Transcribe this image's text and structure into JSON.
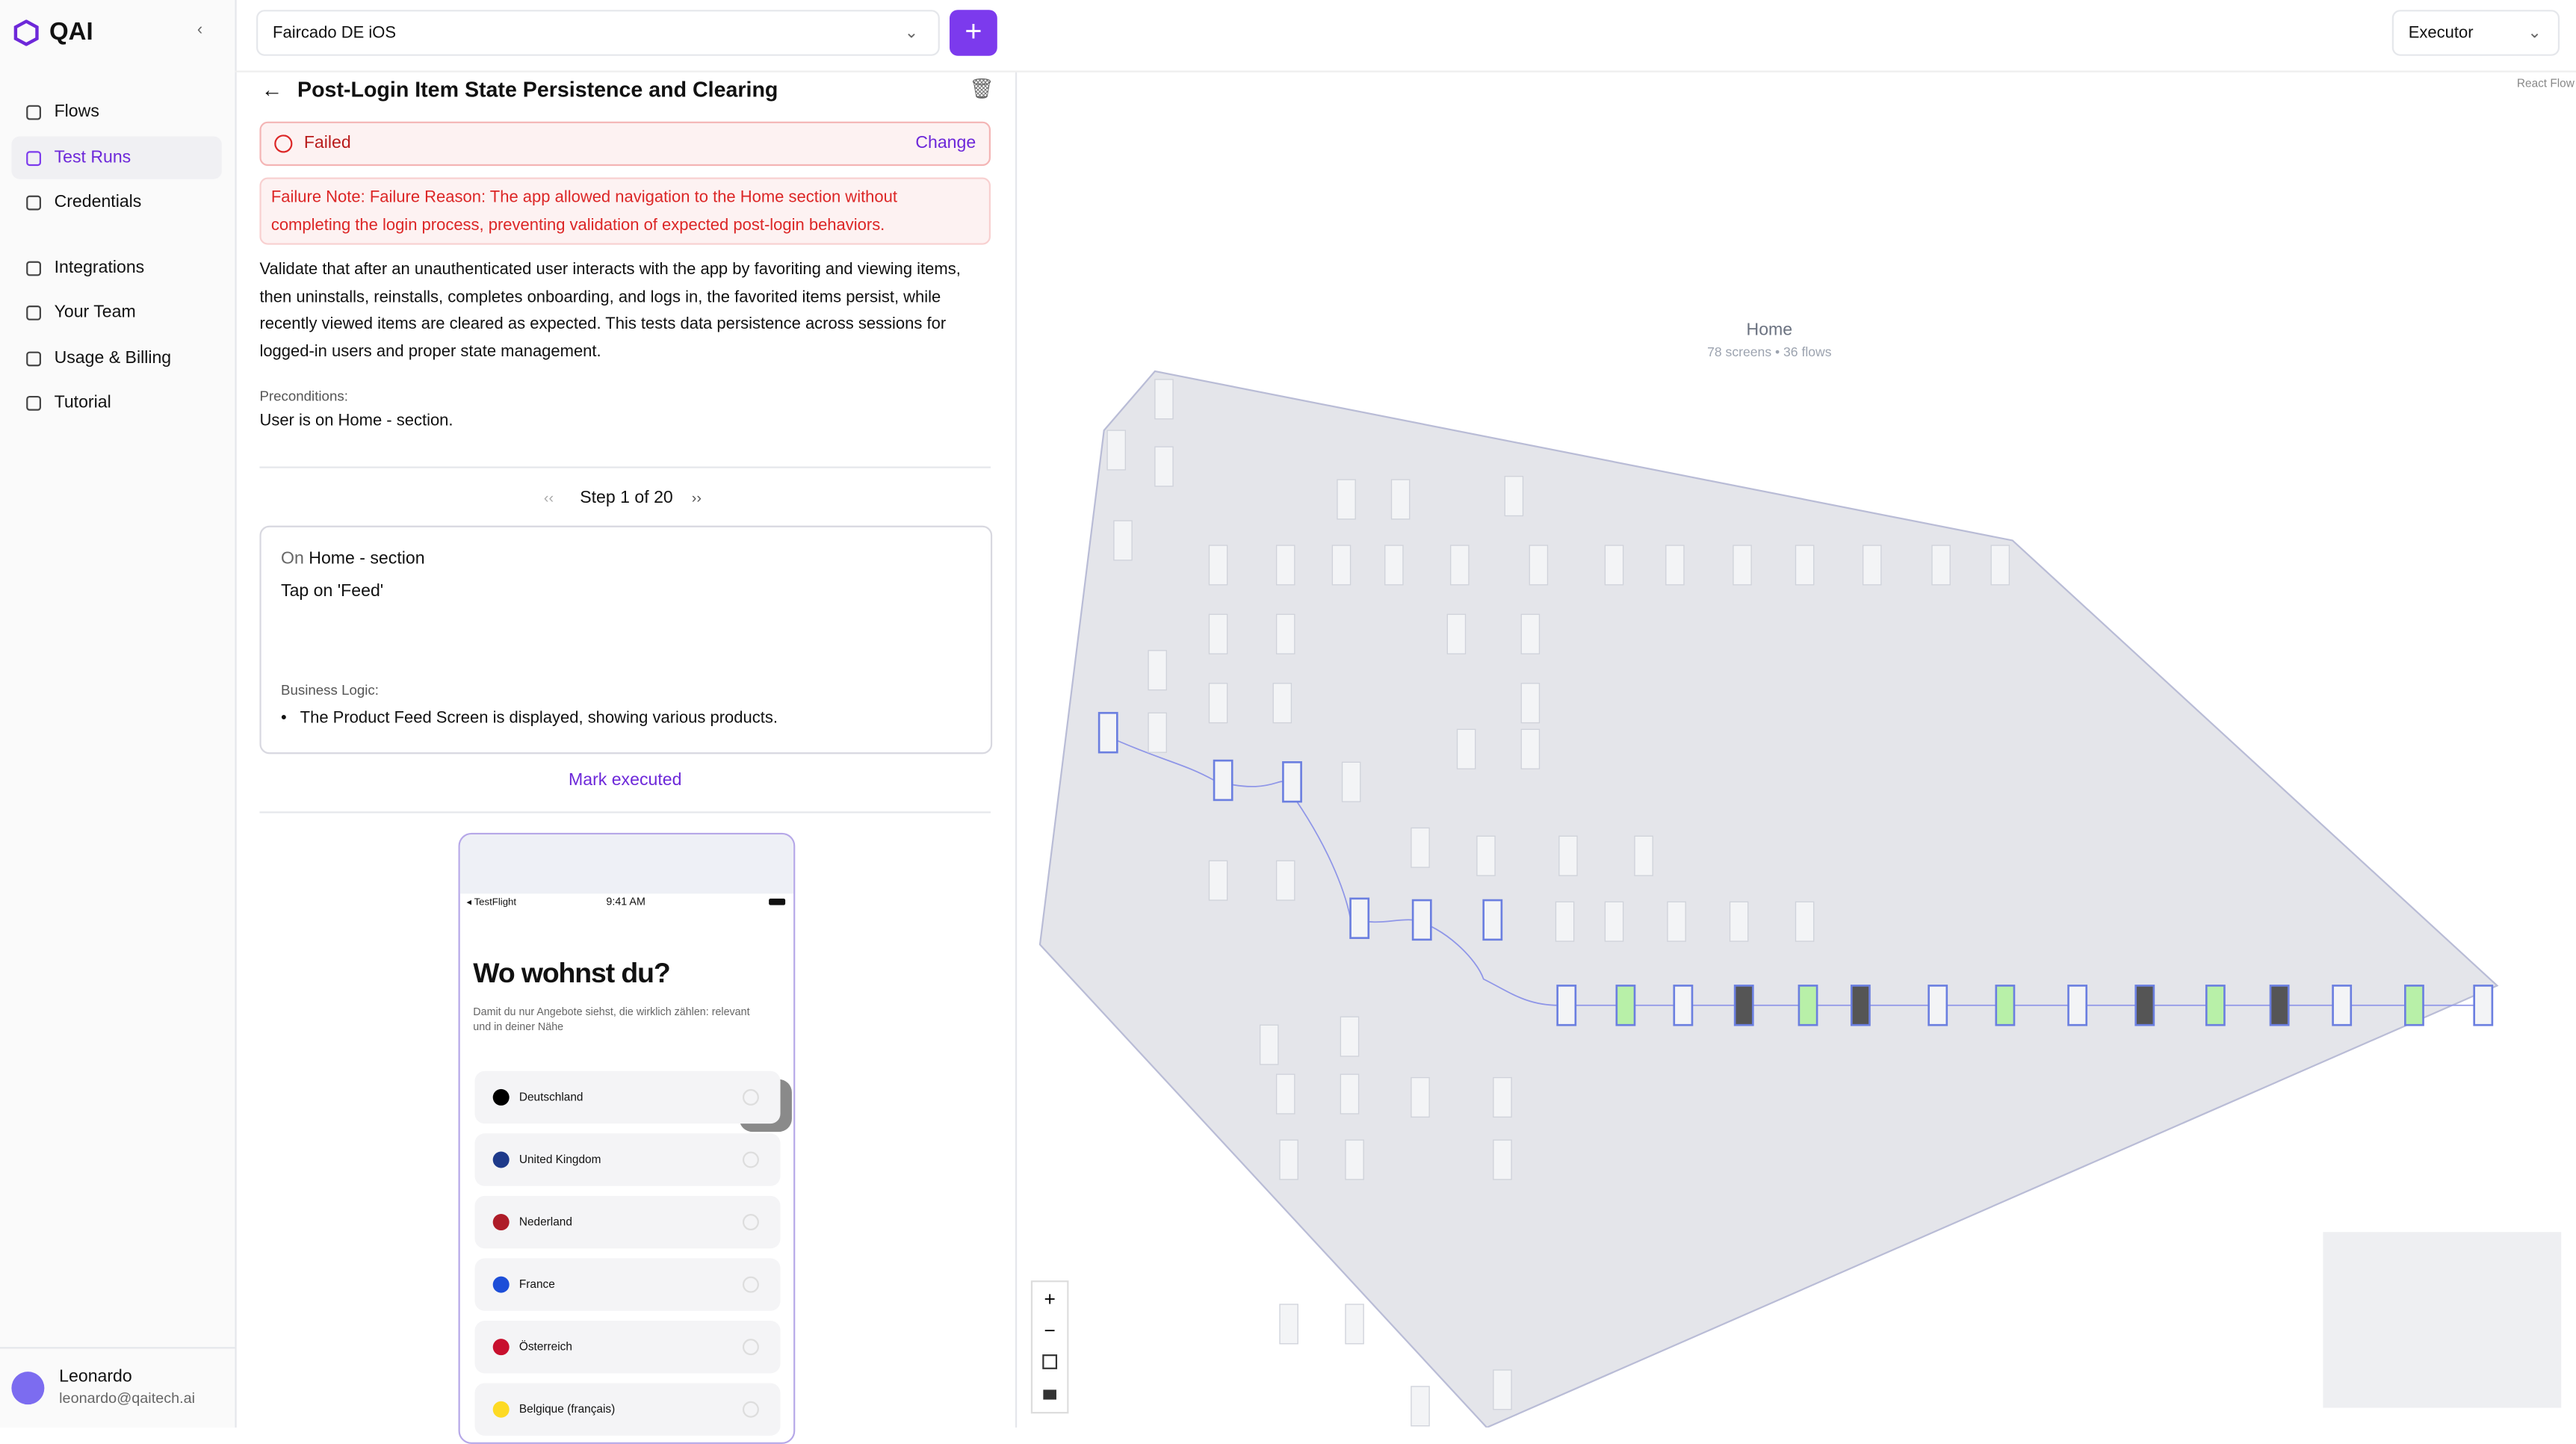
{
  "app": {
    "logo": "QAI",
    "project": "Faircado DE iOS",
    "role": "Executor",
    "canvas_credit": "React Flow"
  },
  "nav": {
    "items": [
      "Flows",
      "Test Runs",
      "Credentials",
      "Integrations",
      "Your Team",
      "Usage & Billing",
      "Tutorial"
    ]
  },
  "user": {
    "name": "Leonardo",
    "email": "leonardo@qaitech.ai"
  },
  "test_run": {
    "title": "Post-Login Item State Persistence and Clearing",
    "status": "Failed",
    "change": "Change",
    "failure_label": "Failure Note:",
    "failure_text": "Failure Reason: The app allowed navigation to the Home section without completing the login process, preventing validation of expected post-login behaviors.",
    "description": "Validate that after an unauthenticated user interacts with the app by favoriting and viewing items, then uninstalls, reinstalls, completes onboarding, and logs in, the favorited items persist, while recently viewed items are cleared as expected. This tests data persistence across sessions for logged-in users and proper state management.",
    "preconditions_label": "Preconditions:",
    "preconditions": "User is on Home - section.",
    "step_counter": "Step 1 of 20",
    "step": {
      "on": "On",
      "screen": "Home - section",
      "action": "Tap on 'Feed'",
      "logic_label": "Business Logic:",
      "logic": [
        "The Product Feed Screen is displayed, showing various products."
      ]
    },
    "mark_executed": "Mark executed"
  },
  "screenshot": {
    "carrier": "TestFlight",
    "time": "9:41 AM",
    "heading": "Wo wohnst du?",
    "subtitle": "Damit du nur Angebote siehst, die wirklich zählen: relevant und in deiner Nähe",
    "countries": [
      "Deutschland",
      "United Kingdom",
      "Nederland",
      "France",
      "Österreich",
      "Belgique (français)"
    ]
  },
  "graph": {
    "group": "Home",
    "stats": "78 screens • 36 flows"
  }
}
